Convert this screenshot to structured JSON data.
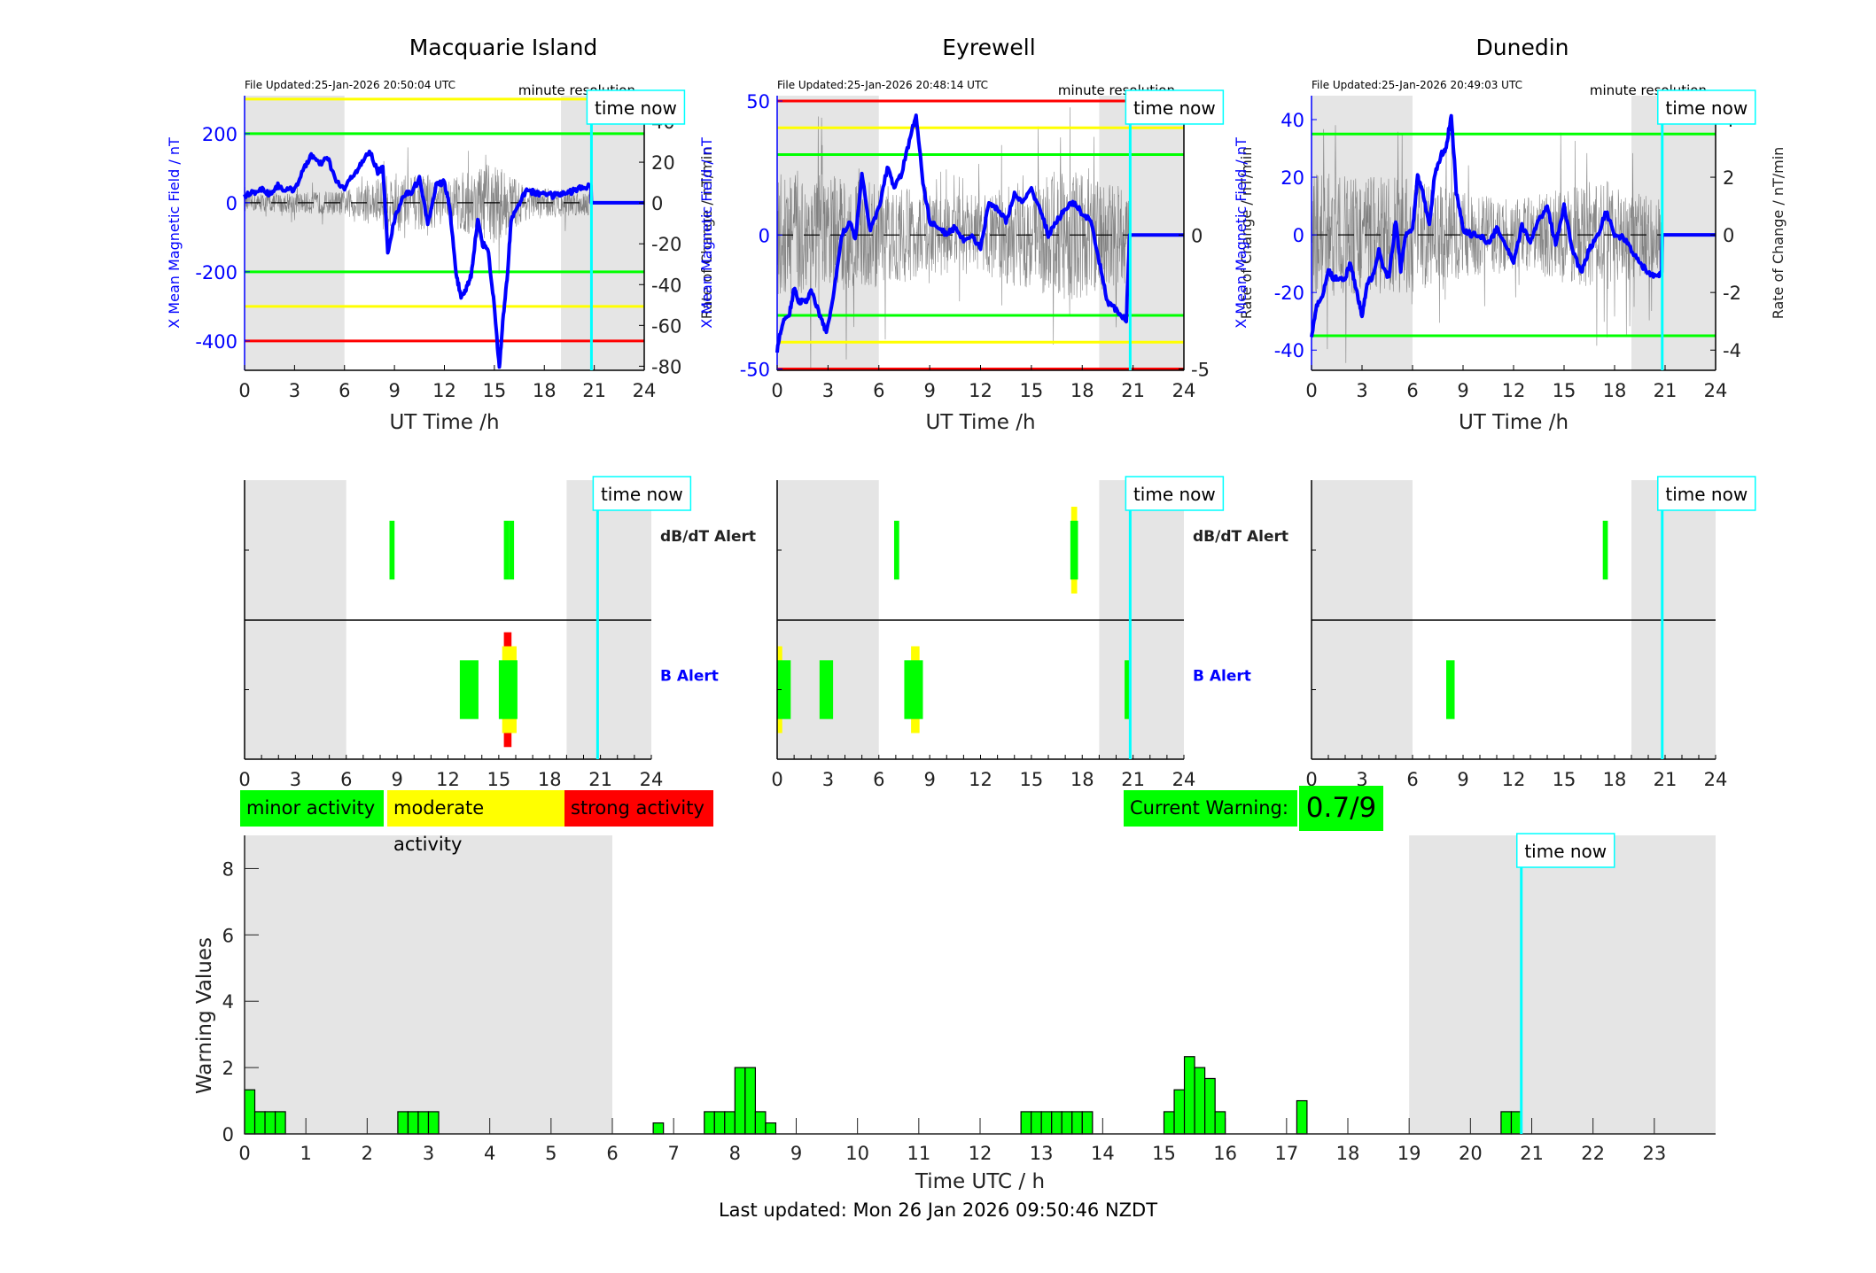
{
  "page": {
    "last_updated": "Last updated: Mon 26 Jan 2026 09:50:46 NZDT",
    "time_now_label": "time now",
    "minute_resolution_label": "minute resolution",
    "time_now_hour": 20.83
  },
  "legend": {
    "minor": {
      "label": "minor activity",
      "color": "#00ff00"
    },
    "moderate": {
      "label": "moderate activity",
      "color": "#ffff00"
    },
    "strong": {
      "label": "strong activity",
      "color": "#ff0000"
    }
  },
  "current_warning": {
    "label": "Current Warning:",
    "value": "0.7/9"
  },
  "colors": {
    "field_line": "#0000ff",
    "rate_line": "#555555",
    "night_shade": "#e5e5e5",
    "time_now": "#00ffff",
    "green": "#00ff00",
    "yellow": "#ffff00",
    "red": "#ff0000",
    "b_alert_label": "#0000ff"
  },
  "alert_labels": {
    "dbdt": "dB/dT Alert",
    "b": "B Alert"
  },
  "chart_data": [
    {
      "type": "line",
      "title": "Macquarie Island",
      "file_updated": "File Updated:25-Jan-2026 20:50:04 UTC",
      "xlabel": "UT Time /h",
      "ylabel_left": "X Mean Magnetic Field / nT",
      "ylabel_right": "Rate of Change / nT/min",
      "xlim": [
        0,
        24
      ],
      "xticks": [
        0,
        3,
        6,
        9,
        12,
        15,
        18,
        21,
        24
      ],
      "ylim_left": [
        -485,
        310
      ],
      "yticks_left": [
        -400,
        -200,
        0,
        200
      ],
      "ylim_right": [
        -82,
        52.6
      ],
      "yticks_right": [
        -80,
        -60,
        -40,
        -20,
        0,
        20,
        40
      ],
      "night_shading": [
        [
          0,
          6
        ],
        [
          19,
          24
        ]
      ],
      "thresholds": [
        {
          "value": 300,
          "color": "yellow"
        },
        {
          "value": 200,
          "color": "green"
        },
        {
          "value": -200,
          "color": "green"
        },
        {
          "value": -300,
          "color": "yellow"
        },
        {
          "value": -400,
          "color": "red"
        }
      ],
      "series": [
        {
          "name": "X Mean Magnetic Field",
          "axis": "left",
          "x": [
            0,
            0.5,
            1,
            1.5,
            2,
            2.5,
            3,
            3.5,
            4,
            4.5,
            5,
            5.5,
            6,
            6.5,
            7,
            7.5,
            8,
            8.3,
            8.6,
            9,
            9.5,
            10,
            10.5,
            11,
            11.5,
            12,
            12.3,
            12.7,
            13,
            13.3,
            13.6,
            14,
            14.3,
            14.6,
            15,
            15.3,
            15.5,
            15.8,
            16,
            16.5,
            17,
            17.5,
            18,
            18.5,
            19,
            19.5,
            20,
            20.5,
            20.8
          ],
          "y": [
            20,
            30,
            40,
            25,
            50,
            35,
            40,
            90,
            140,
            110,
            130,
            60,
            40,
            80,
            110,
            150,
            90,
            100,
            -140,
            -50,
            20,
            30,
            70,
            -60,
            50,
            60,
            -10,
            -200,
            -280,
            -250,
            -210,
            -50,
            -120,
            -130,
            -300,
            -480,
            -350,
            -200,
            -50,
            0,
            40,
            25,
            30,
            20,
            25,
            30,
            40,
            45,
            50
          ]
        },
        {
          "name": "Rate of Change",
          "axis": "right",
          "style": "noise",
          "amplitude_profile": [
            [
              0,
              4
            ],
            [
              6,
              6
            ],
            [
              9,
              15
            ],
            [
              12,
              12
            ],
            [
              15,
              20
            ],
            [
              17,
              8
            ],
            [
              20.8,
              6
            ]
          ]
        },
        {
          "name": "Baseline",
          "axis": "left",
          "style": "dashed",
          "y_const": 0
        }
      ],
      "alerts": {
        "dbdt": [
          {
            "start": 8.55,
            "end": 8.85,
            "level": "minor"
          },
          {
            "start": 15.3,
            "end": 15.6,
            "level": "minor"
          },
          {
            "start": 15.6,
            "end": 15.9,
            "level": "minor"
          }
        ],
        "b": [
          {
            "start": 12.7,
            "end": 13.8,
            "level": "minor"
          },
          {
            "start": 15.3,
            "end": 15.75,
            "level": "strong"
          },
          {
            "start": 15.2,
            "end": 16.05,
            "level": "moderate"
          },
          {
            "start": 15.0,
            "end": 16.1,
            "level": "minor"
          }
        ]
      },
      "show_alert_labels": true
    },
    {
      "type": "line",
      "title": "Eyrewell",
      "file_updated": "File Updated:25-Jan-2026 20:48:14 UTC",
      "xlabel": "UT Time /h",
      "ylabel_left": "X Mean Magnetic Field / nT",
      "ylabel_right": "Rate of Change / nT/min",
      "xlim": [
        0,
        24
      ],
      "xticks": [
        0,
        3,
        6,
        9,
        12,
        15,
        18,
        21,
        24
      ],
      "ylim_left": [
        -50.5,
        52
      ],
      "yticks_left": [
        -50,
        0,
        50
      ],
      "ylim_right": [
        -5.05,
        5.2
      ],
      "yticks_right": [
        -5,
        0,
        5
      ],
      "night_shading": [
        [
          0,
          6
        ],
        [
          19,
          24
        ]
      ],
      "thresholds": [
        {
          "value": 50,
          "color": "red"
        },
        {
          "value": 40,
          "color": "yellow"
        },
        {
          "value": 30,
          "color": "green"
        },
        {
          "value": -30,
          "color": "green"
        },
        {
          "value": -40,
          "color": "yellow"
        },
        {
          "value": -50,
          "color": "red"
        }
      ],
      "series": [
        {
          "name": "X Mean Magnetic Field",
          "axis": "left",
          "x": [
            0,
            0.3,
            0.7,
            1,
            1.3,
            1.7,
            2,
            2.5,
            2.9,
            3.3,
            3.8,
            4.3,
            4.6,
            5,
            5.5,
            6,
            6.5,
            6.9,
            7.3,
            7.8,
            8.2,
            8.6,
            9,
            9.5,
            10,
            10.5,
            11,
            11.5,
            12,
            12.5,
            13,
            13.5,
            14,
            14.5,
            15,
            15.5,
            16,
            16.5,
            17,
            17.5,
            18,
            18.5,
            19,
            19.5,
            20,
            20.6,
            20.8
          ],
          "y": [
            -43,
            -33,
            -30,
            -20,
            -25,
            -25,
            -20,
            -30,
            -36,
            -24,
            0,
            5,
            -2,
            22,
            2,
            10,
            25,
            18,
            22,
            35,
            45,
            20,
            5,
            3,
            0,
            3,
            -2,
            0,
            -5,
            12,
            10,
            5,
            15,
            12,
            17,
            10,
            0,
            5,
            10,
            12,
            8,
            5,
            -10,
            -25,
            -28,
            -32,
            0
          ]
        },
        {
          "name": "Rate of Change",
          "axis": "right",
          "style": "noise",
          "amplitude_profile": [
            [
              0,
              2.5
            ],
            [
              6,
              2.0
            ],
            [
              9,
              1.5
            ],
            [
              12,
              1.5
            ],
            [
              17,
              2.5
            ],
            [
              20.8,
              1.8
            ]
          ]
        },
        {
          "name": "Baseline",
          "axis": "left",
          "style": "dashed",
          "y_const": 0
        }
      ],
      "alerts": {
        "dbdt": [
          {
            "start": 6.9,
            "end": 7.2,
            "level": "minor"
          },
          {
            "start": 17.35,
            "end": 17.7,
            "level": "moderate"
          },
          {
            "start": 17.3,
            "end": 17.75,
            "level": "minor"
          }
        ],
        "b": [
          {
            "start": 0,
            "end": 0.3,
            "level": "moderate"
          },
          {
            "start": 0,
            "end": 0.8,
            "level": "minor"
          },
          {
            "start": 2.5,
            "end": 3.3,
            "level": "minor"
          },
          {
            "start": 7.9,
            "end": 8.4,
            "level": "moderate"
          },
          {
            "start": 7.5,
            "end": 8.6,
            "level": "minor"
          },
          {
            "start": 20.5,
            "end": 20.85,
            "level": "minor"
          }
        ]
      },
      "show_alert_labels": true
    },
    {
      "type": "line",
      "title": "Dunedin",
      "file_updated": "File Updated:25-Jan-2026 20:49:03 UTC",
      "xlabel": "UT Time /h",
      "ylabel_left": "X Mean Magnetic Field / nT",
      "ylabel_right": "Rate of Change / nT/min",
      "xlim": [
        0,
        24
      ],
      "xticks": [
        0,
        3,
        6,
        9,
        12,
        15,
        18,
        21,
        24
      ],
      "ylim_left": [
        -47,
        48.3
      ],
      "yticks_left": [
        -40,
        -20,
        0,
        20,
        40
      ],
      "ylim_right": [
        -4.7,
        4.83
      ],
      "yticks_right": [
        -4,
        -2,
        0,
        2,
        4
      ],
      "night_shading": [
        [
          0,
          6
        ],
        [
          19,
          24
        ]
      ],
      "thresholds": [
        {
          "value": 35,
          "color": "green"
        },
        {
          "value": -35,
          "color": "green"
        }
      ],
      "series": [
        {
          "name": "X Mean Magnetic Field",
          "axis": "left",
          "x": [
            0,
            0.3,
            0.7,
            1,
            1.3,
            1.7,
            2,
            2.3,
            2.7,
            3,
            3.3,
            3.7,
            4,
            4.3,
            4.6,
            5,
            5.3,
            5.6,
            6,
            6.3,
            6.6,
            7,
            7.3,
            7.7,
            8,
            8.3,
            8.6,
            9,
            9.5,
            10,
            10.5,
            11,
            11.5,
            12,
            12.5,
            13,
            13.5,
            14,
            14.5,
            15,
            15.5,
            16,
            16.5,
            17,
            17.5,
            18,
            18.5,
            19,
            19.5,
            20,
            20.5,
            20.8
          ],
          "y": [
            -35,
            -25,
            -20,
            -12,
            -15,
            -15,
            -15,
            -10,
            -20,
            -28,
            -17,
            -14,
            -5,
            -12,
            -15,
            5,
            -12,
            0,
            2,
            20,
            15,
            3,
            20,
            28,
            30,
            42,
            15,
            2,
            0,
            0,
            -3,
            2,
            -3,
            -10,
            3,
            -2,
            5,
            10,
            -3,
            10,
            -5,
            -13,
            -5,
            0,
            8,
            0,
            -1,
            -5,
            -10,
            -13,
            -15,
            -13
          ]
        },
        {
          "name": "Rate of Change",
          "axis": "right",
          "style": "noise",
          "amplitude_profile": [
            [
              0,
              2.2
            ],
            [
              6,
              2.0
            ],
            [
              9,
              1.5
            ],
            [
              12,
              1.2
            ],
            [
              17,
              2.0
            ],
            [
              20.8,
              1.2
            ]
          ]
        },
        {
          "name": "Baseline",
          "axis": "left",
          "style": "dashed",
          "y_const": 0
        }
      ],
      "alerts": {
        "dbdt": [
          {
            "start": 17.3,
            "end": 17.6,
            "level": "minor"
          }
        ],
        "b": [
          {
            "start": 8.0,
            "end": 8.5,
            "level": "minor"
          }
        ]
      },
      "show_alert_labels": false
    },
    {
      "type": "bar",
      "title": "",
      "xlabel": "Time UTC / h",
      "ylabel": "Warning Values",
      "xlim": [
        0,
        24
      ],
      "xticks": [
        0,
        1,
        2,
        3,
        4,
        5,
        6,
        7,
        8,
        9,
        10,
        11,
        12,
        13,
        14,
        15,
        16,
        17,
        18,
        19,
        20,
        21,
        22,
        23
      ],
      "ylim": [
        0,
        9
      ],
      "yticks": [
        0,
        2,
        4,
        6,
        8
      ],
      "night_shading": [
        [
          0,
          6
        ],
        [
          19,
          24
        ]
      ],
      "bin_width_h": 0.1667,
      "bars": [
        {
          "x": 0.0,
          "value": 1.33
        },
        {
          "x": 0.167,
          "value": 0.67
        },
        {
          "x": 0.333,
          "value": 0.67
        },
        {
          "x": 0.5,
          "value": 0.67
        },
        {
          "x": 2.5,
          "value": 0.67
        },
        {
          "x": 2.667,
          "value": 0.67
        },
        {
          "x": 2.833,
          "value": 0.67
        },
        {
          "x": 3.0,
          "value": 0.67
        },
        {
          "x": 6.667,
          "value": 0.33
        },
        {
          "x": 7.5,
          "value": 0.67
        },
        {
          "x": 7.667,
          "value": 0.67
        },
        {
          "x": 7.833,
          "value": 0.67
        },
        {
          "x": 8.0,
          "value": 2.0
        },
        {
          "x": 8.167,
          "value": 2.0
        },
        {
          "x": 8.333,
          "value": 0.67
        },
        {
          "x": 8.5,
          "value": 0.33
        },
        {
          "x": 12.667,
          "value": 0.67
        },
        {
          "x": 12.833,
          "value": 0.67
        },
        {
          "x": 13.0,
          "value": 0.67
        },
        {
          "x": 13.167,
          "value": 0.67
        },
        {
          "x": 13.333,
          "value": 0.67
        },
        {
          "x": 13.5,
          "value": 0.67
        },
        {
          "x": 13.667,
          "value": 0.67
        },
        {
          "x": 15.0,
          "value": 0.67
        },
        {
          "x": 15.167,
          "value": 1.33
        },
        {
          "x": 15.333,
          "value": 2.33
        },
        {
          "x": 15.5,
          "value": 2.0
        },
        {
          "x": 15.667,
          "value": 1.67
        },
        {
          "x": 15.833,
          "value": 0.67
        },
        {
          "x": 17.167,
          "value": 1.0
        },
        {
          "x": 20.5,
          "value": 0.67
        },
        {
          "x": 20.667,
          "value": 0.67
        }
      ]
    }
  ]
}
